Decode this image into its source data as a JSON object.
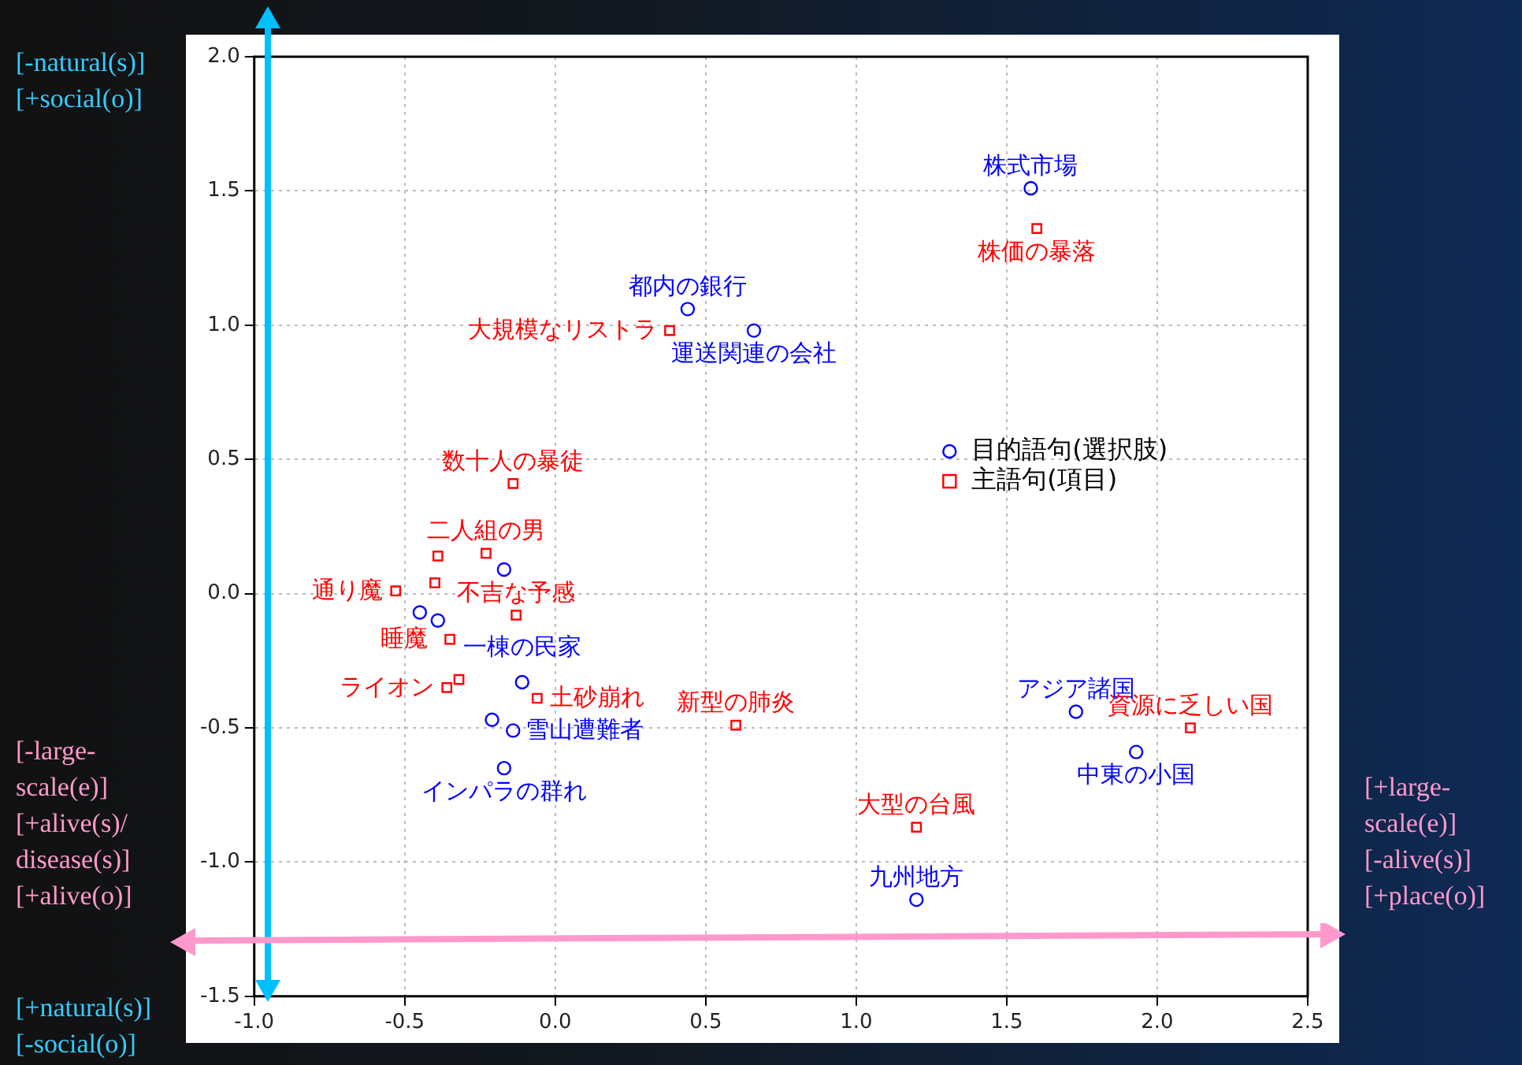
{
  "chart_data": {
    "type": "scatter",
    "xlim": [
      -1.0,
      2.5
    ],
    "xticks": [
      {
        "value": -1,
        "label": "-1.0"
      },
      -0.5,
      {
        "value": 0,
        "label": "0.0"
      },
      0.5,
      {
        "value": 1,
        "label": "1.0"
      },
      1.5,
      {
        "value": 2,
        "label": "2.0"
      },
      2.5
    ],
    "ylim": [
      -1.5,
      2.0
    ],
    "yticks": [
      -1.5,
      {
        "value": -1,
        "label": "-1.0"
      },
      -0.5,
      {
        "value": 0,
        "label": "0.0"
      },
      0.5,
      {
        "value": 1,
        "label": "1.0"
      },
      1.5,
      {
        "value": 2,
        "label": "2.0"
      }
    ],
    "grid": true,
    "legend": "right",
    "series": [
      {
        "name": "目的語句(選択肢)",
        "color": "#0000ff",
        "marker": "circle",
        "x": [
          1.58,
          0.44,
          0.66,
          1.73,
          1.93,
          1.2,
          -0.17,
          -0.14,
          -0.11,
          -0.21,
          -0.17,
          -0.45,
          -0.39
        ],
        "values": [
          1.51,
          1.06,
          0.98,
          -0.44,
          -0.59,
          -1.14,
          -0.65,
          -0.51,
          -0.33,
          -0.47,
          0.09,
          -0.07,
          -0.1
        ],
        "value_labels": [
          "株式市場",
          "都内の銀行",
          "運送関連の会社",
          "アジア諸国",
          "中東の小国",
          "九州地方",
          "インパラの群れ",
          "雪山遭難者",
          "一棟の民家",
          null,
          null,
          null,
          null
        ]
      },
      {
        "name": "主語句(項目)",
        "color": "#ff0000",
        "marker": "square",
        "x": [
          1.6,
          0.38,
          -0.14,
          0.6,
          1.2,
          2.11,
          -0.23,
          -0.39,
          -0.53,
          -0.4,
          -0.13,
          -0.35,
          -0.36,
          -0.32,
          -0.06
        ],
        "values": [
          1.36,
          0.98,
          0.41,
          -0.49,
          -0.87,
          -0.5,
          0.15,
          0.14,
          0.01,
          0.04,
          -0.08,
          -0.17,
          -0.35,
          -0.32,
          -0.39
        ],
        "value_labels": [
          "株価の暴落",
          "大規模なリストラ",
          "数十人の暴徒",
          "新型の肺炎",
          "大型の台風",
          "資源に乏しい国",
          "二人組の男",
          null,
          "通り魔",
          null,
          "不吉な予感",
          "睡魔",
          "ライオン",
          null,
          "土砂崩れ"
        ]
      }
    ],
    "annotations": [
      "[-natural(s)]\n[+social(o)]",
      "[+natural(s)]\n[-social(o)]",
      "[-large-\nscale(e)]\n[+alive(s)/\ndisease(s)]\n[+alive(o)]",
      "[+large-\nscale(e)]\n[-alive(s)]\n[+place(o)]"
    ]
  }
}
